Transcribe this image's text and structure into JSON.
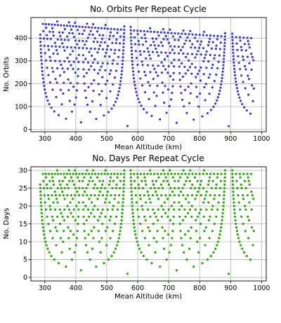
{
  "chart_data": [
    {
      "type": "scatter",
      "title": "No. Orbits Per Repeat Cycle",
      "xlabel": "Mean Altitude (km)",
      "ylabel": "No. Orbits",
      "xlim": [
        255,
        1015
      ],
      "ylim": [
        -10,
        490
      ],
      "xticks": [
        300,
        400,
        500,
        600,
        700,
        800,
        900,
        1000
      ],
      "yticks": [
        0,
        100,
        200,
        300,
        400
      ],
      "grid": true,
      "color": "#3a3acc",
      "points": "generated-from-repeat-ground-track-model",
      "days_max": 30,
      "alt_range": [
        285,
        975
      ]
    },
    {
      "type": "scatter",
      "title": "No. Days Per Repeat Cycle",
      "xlabel": "Mean Altitude (km)",
      "ylabel": "No. Days",
      "xlim": [
        255,
        1015
      ],
      "ylim": [
        -1,
        31
      ],
      "xticks": [
        300,
        400,
        500,
        600,
        700,
        800,
        900,
        1000
      ],
      "yticks": [
        0,
        5,
        10,
        15,
        20,
        25,
        30
      ],
      "grid": true,
      "color": "#22aa00",
      "points": "generated-from-repeat-ground-track-model",
      "days_max": 30,
      "alt_range": [
        285,
        975
      ]
    }
  ]
}
